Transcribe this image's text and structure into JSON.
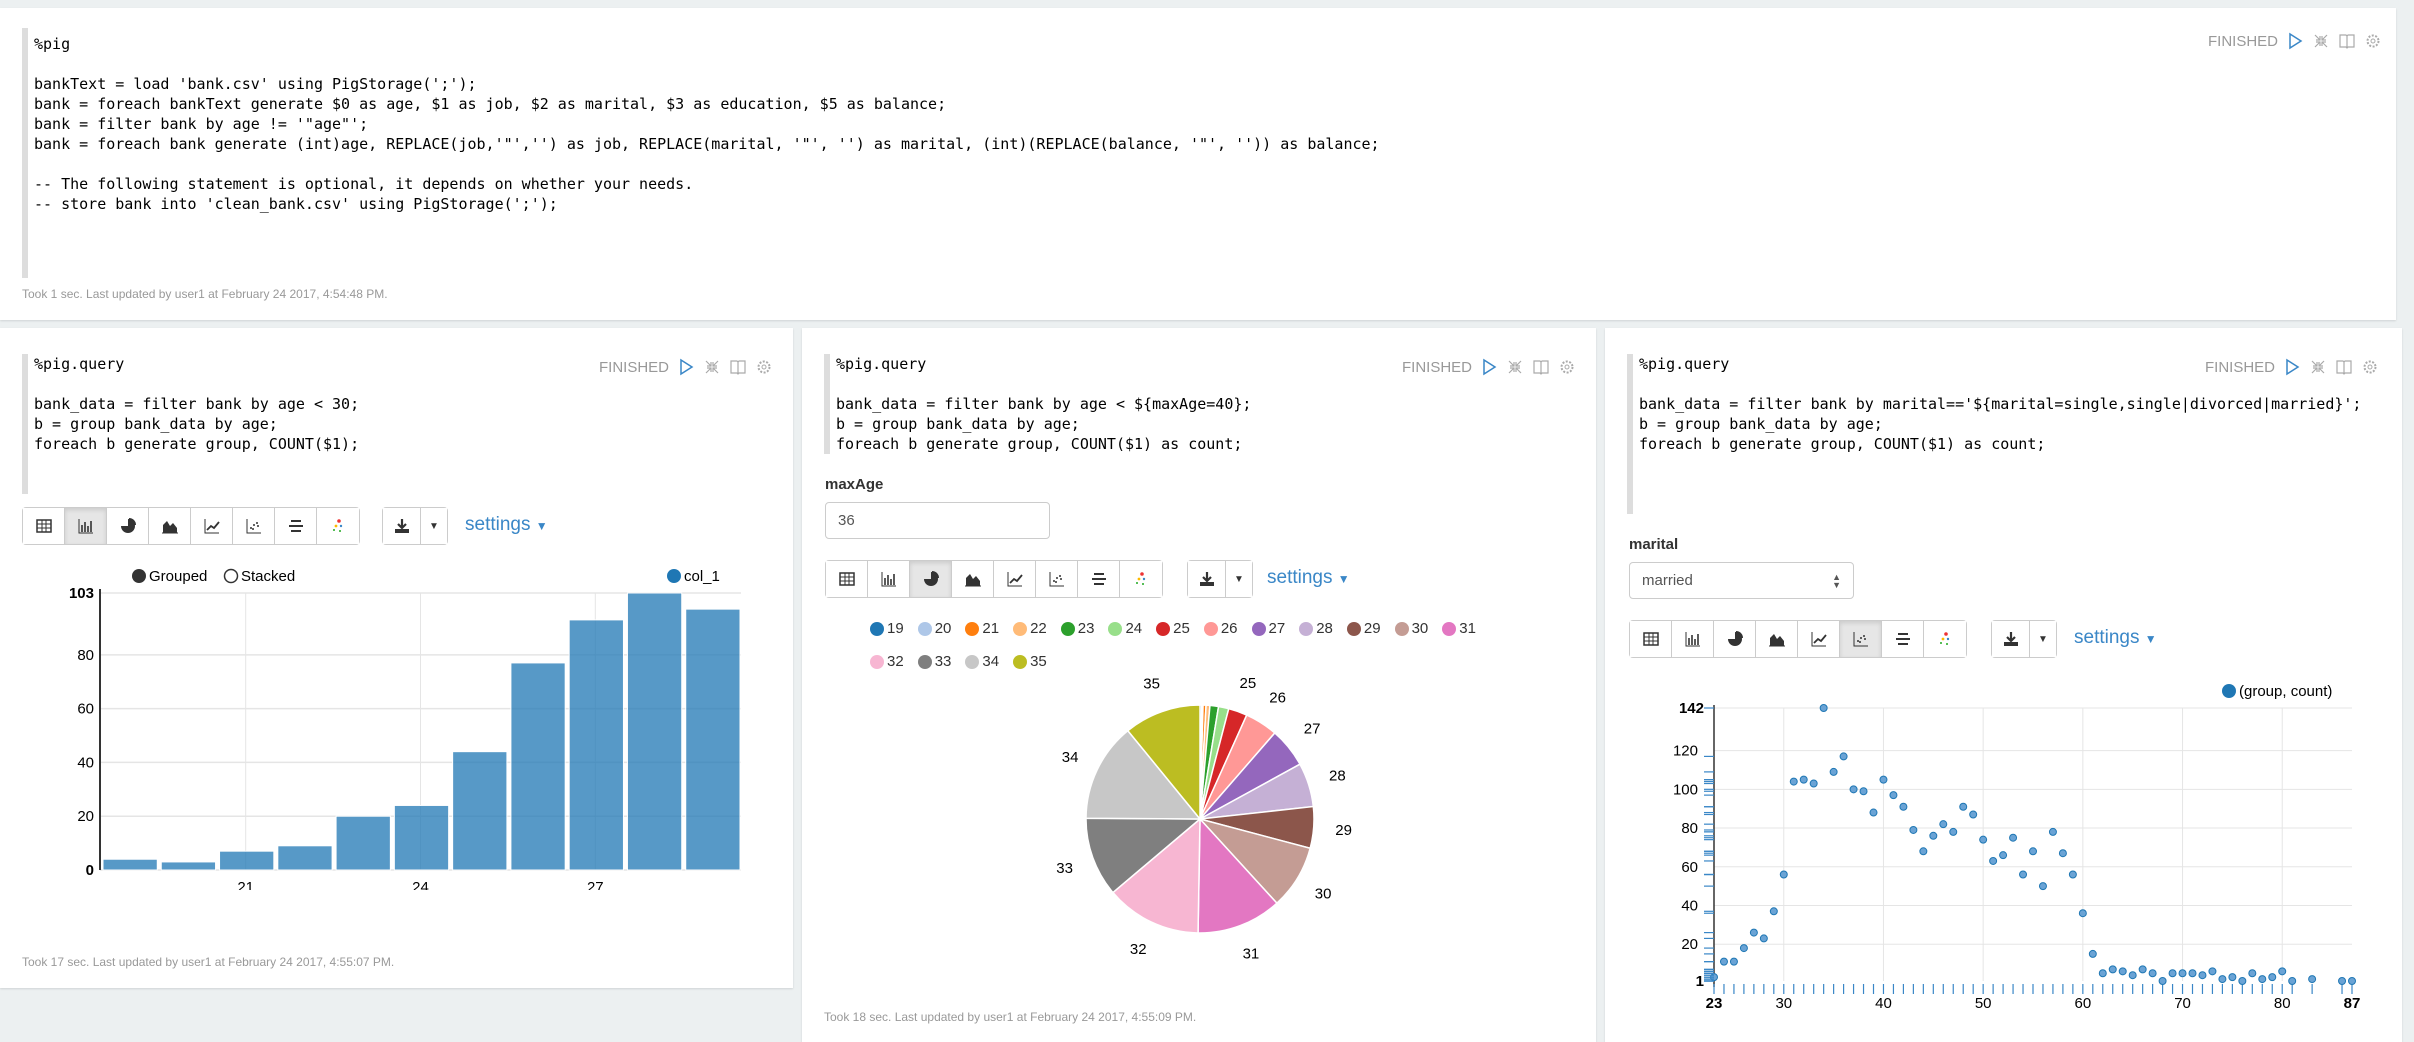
{
  "paragraphs": [
    {
      "status": "FINISHED",
      "code": [
        "%pig",
        "",
        "bankText = load 'bank.csv' using PigStorage(';');",
        "bank = foreach bankText generate $0 as age, $1 as job, $2 as marital, $3 as education, $5 as balance;",
        "bank = filter bank by age != '\"age\"';",
        "bank = foreach bank generate (int)age, REPLACE(job,'\"','') as job, REPLACE(marital, '\"', '') as marital, (int)(REPLACE(balance, '\"', '')) as balance;",
        "",
        "-- The following statement is optional, it depends on whether your needs.",
        "-- store bank into 'clean_bank.csv' using PigStorage(';');"
      ],
      "took": "Took 1 sec. Last updated by user1 at February 24 2017, 4:54:48 PM."
    },
    {
      "status": "FINISHED",
      "code": [
        "%pig.query",
        "",
        "bank_data = filter bank by age < 30;",
        "b = group bank_data by age;",
        "foreach b generate group, COUNT($1);"
      ],
      "took": "Took 17 sec. Last updated by user1 at February 24 2017, 4:55:07 PM.",
      "settings": "settings",
      "active_view": "bar-chart"
    },
    {
      "status": "FINISHED",
      "code": [
        "%pig.query",
        "",
        "bank_data = filter bank by age < ${maxAge=40};",
        "b = group bank_data by age;",
        "foreach b generate group, COUNT($1) as count;"
      ],
      "form_label": "maxAge",
      "form_value": "36",
      "took": "Took 18 sec. Last updated by user1 at February 24 2017, 4:55:09 PM.",
      "settings": "settings",
      "active_view": "pie-chart"
    },
    {
      "status": "FINISHED",
      "code": [
        "%pig.query",
        "",
        "bank_data = filter bank by marital=='${marital=single,single|divorced|married}';",
        "b = group bank_data by age;",
        "foreach b generate group, COUNT($1) as count;"
      ],
      "form_label": "marital",
      "form_value": "married",
      "settings": "settings",
      "active_view": "scatter-chart"
    }
  ],
  "accent": "#3a87c7",
  "chart_data": [
    {
      "type": "bar",
      "legend_modes": [
        "Grouped",
        "Stacked"
      ],
      "selected_mode": "Grouped",
      "series": [
        {
          "name": "col_1",
          "color": "#1f77b4",
          "values": [
            4,
            3,
            7,
            9,
            20,
            24,
            44,
            77,
            93,
            103,
            97
          ]
        }
      ],
      "categories": [
        19,
        20,
        21,
        22,
        23,
        24,
        25,
        26,
        27,
        28,
        29
      ],
      "xticks": [
        21,
        24,
        27
      ],
      "yticks": [
        0,
        20,
        40,
        60,
        80,
        103
      ],
      "ylim": [
        0,
        103
      ],
      "grid": true,
      "legend": "top-right"
    },
    {
      "type": "pie",
      "labels": [
        19,
        20,
        21,
        22,
        23,
        24,
        25,
        26,
        27,
        28,
        29,
        30,
        31,
        32,
        33,
        34,
        35
      ],
      "values": [
        4,
        3,
        7,
        9,
        20,
        24,
        44,
        77,
        93,
        103,
        97,
        150,
        199,
        224,
        186,
        231,
        180
      ],
      "colors": [
        "#1f77b4",
        "#aec7e8",
        "#ff7f0e",
        "#ffbb78",
        "#2ca02c",
        "#98df8a",
        "#d62728",
        "#ff9896",
        "#9467bd",
        "#c5b0d5",
        "#8c564b",
        "#c49c94",
        "#e377c2",
        "#f7b6d2",
        "#7f7f7f",
        "#c7c7c7",
        "#bcbd22"
      ],
      "legend": "top"
    },
    {
      "type": "scatter",
      "series": [
        {
          "name": "(group, count)",
          "color": "#1f77b4"
        }
      ],
      "x": [
        23,
        24,
        25,
        26,
        27,
        28,
        29,
        30,
        31,
        32,
        33,
        34,
        35,
        36,
        37,
        38,
        39,
        40,
        41,
        42,
        43,
        44,
        45,
        46,
        47,
        48,
        49,
        50,
        51,
        52,
        53,
        54,
        55,
        56,
        57,
        58,
        59,
        60,
        61,
        62,
        63,
        64,
        65,
        66,
        67,
        68,
        69,
        70,
        71,
        72,
        73,
        74,
        75,
        76,
        77,
        78,
        79,
        80,
        81,
        83,
        86,
        87
      ],
      "y": [
        3,
        11,
        11,
        18,
        26,
        23,
        37,
        56,
        104,
        105,
        103,
        142,
        109,
        117,
        100,
        99,
        88,
        105,
        97,
        91,
        79,
        68,
        76,
        82,
        78,
        91,
        87,
        74,
        63,
        66,
        75,
        56,
        68,
        50,
        78,
        67,
        56,
        36,
        15,
        5,
        7,
        6,
        4,
        7,
        5,
        1,
        5,
        5,
        5,
        4,
        6,
        2,
        3,
        1,
        5,
        2,
        3,
        6,
        1,
        2,
        1,
        1
      ],
      "xlim": [
        23,
        87
      ],
      "ylim": [
        1,
        142
      ],
      "xticks": [
        30,
        40,
        50,
        60,
        70,
        80
      ],
      "yticks": [
        20,
        40,
        60,
        80,
        100,
        120
      ],
      "xlim_labels": [
        "23",
        "87"
      ],
      "ylim_labels": [
        "1",
        "142"
      ],
      "grid": true,
      "legend": "top-right"
    }
  ]
}
